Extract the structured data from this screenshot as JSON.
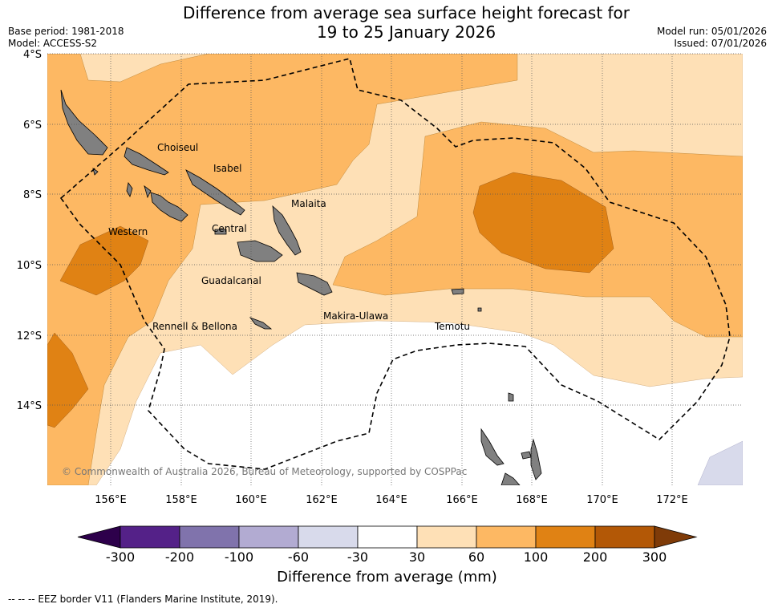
{
  "title": {
    "line1": "Difference from average sea surface height forecast for",
    "line2": "19 to 25 January 2026"
  },
  "meta": {
    "base_period": "Base period: 1981-2018",
    "model": "Model: ACCESS-S2",
    "model_run": "Model run: 05/01/2026",
    "issued": "Issued: 07/01/2026"
  },
  "map": {
    "lat_labels": [
      "4°S",
      "6°S",
      "8°S",
      "10°S",
      "12°S",
      "14°S"
    ],
    "lon_labels": [
      "156°E",
      "158°E",
      "160°E",
      "162°E",
      "164°E",
      "166°E",
      "168°E",
      "170°E",
      "172°E"
    ],
    "places": [
      "Choiseul",
      "Isabel",
      "Malaita",
      "Western",
      "Central",
      "Guadalcanal",
      "Makira-Ulawa",
      "Rennell & Bellona",
      "Temotu"
    ],
    "copyright": "© Commonwealth of Australia 2026, Bureau of Meteorology, supported by COSPPac"
  },
  "colorbar": {
    "ticks": [
      "-300",
      "-200",
      "-100",
      "-60",
      "-30",
      "30",
      "60",
      "100",
      "200",
      "300"
    ],
    "colors": [
      "#542188",
      "#8073ac",
      "#b2abd2",
      "#d8daeb",
      "#ffffff",
      "#fee0b6",
      "#fdb863",
      "#e08214",
      "#b35806"
    ],
    "under_color": "#2d004b",
    "over_color": "#7f3b08",
    "label": "Difference from average (mm)"
  },
  "legend_note": "--  --  -- EEZ border V11 (Flanders Marine Institute, 2019)."
}
